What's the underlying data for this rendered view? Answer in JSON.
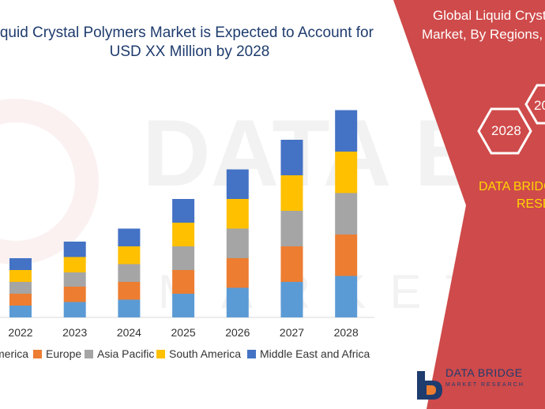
{
  "title": {
    "line1": "Liquid Crystal Polymers Market is Expected to Account for",
    "line2": "USD XX Million by 2028"
  },
  "panel": {
    "heading_line1": "Global Liquid Cryst",
    "heading_line2": "Market, By Regions,",
    "hex_label_1": "2028",
    "hex_label_2": "20",
    "brand_line1": "DATA BRIDG",
    "brand_line2": "RESE",
    "logo_name": "DATA BRIDGE",
    "logo_tagline": "MARKET RESEARCH",
    "panel_color": "#cf4a4a",
    "brand_color": "#ffd700"
  },
  "colors": {
    "North America": "#5b9bd5",
    "Europe": "#ed7d31",
    "Asia Pacific": "#a5a5a5",
    "South America": "#ffc000",
    "Middle East and Africa": "#4472c4"
  },
  "chart_data": {
    "type": "bar",
    "stacked": true,
    "categories": [
      "2022",
      "2023",
      "2024",
      "2025",
      "2026",
      "2027",
      "2028"
    ],
    "series": [
      {
        "name": "North America",
        "values": [
          1.0,
          1.3,
          1.5,
          2.0,
          2.5,
          3.0,
          3.5
        ]
      },
      {
        "name": "Europe",
        "values": [
          1.0,
          1.3,
          1.5,
          2.0,
          2.5,
          3.0,
          3.5
        ]
      },
      {
        "name": "Asia Pacific",
        "values": [
          1.0,
          1.2,
          1.5,
          2.0,
          2.5,
          3.0,
          3.5
        ]
      },
      {
        "name": "South America",
        "values": [
          1.0,
          1.3,
          1.5,
          2.0,
          2.5,
          3.0,
          3.5
        ]
      },
      {
        "name": "Middle East and Africa",
        "values": [
          1.0,
          1.3,
          1.5,
          2.0,
          2.5,
          3.0,
          3.5
        ]
      }
    ],
    "legend_labels": [
      "merica",
      "Europe",
      "Asia Pacific",
      "South America",
      "Middle East and Africa"
    ],
    "ylim": [
      0,
      18
    ],
    "legend_position": "bottom",
    "grid": false,
    "xlabel": "",
    "ylabel": ""
  }
}
